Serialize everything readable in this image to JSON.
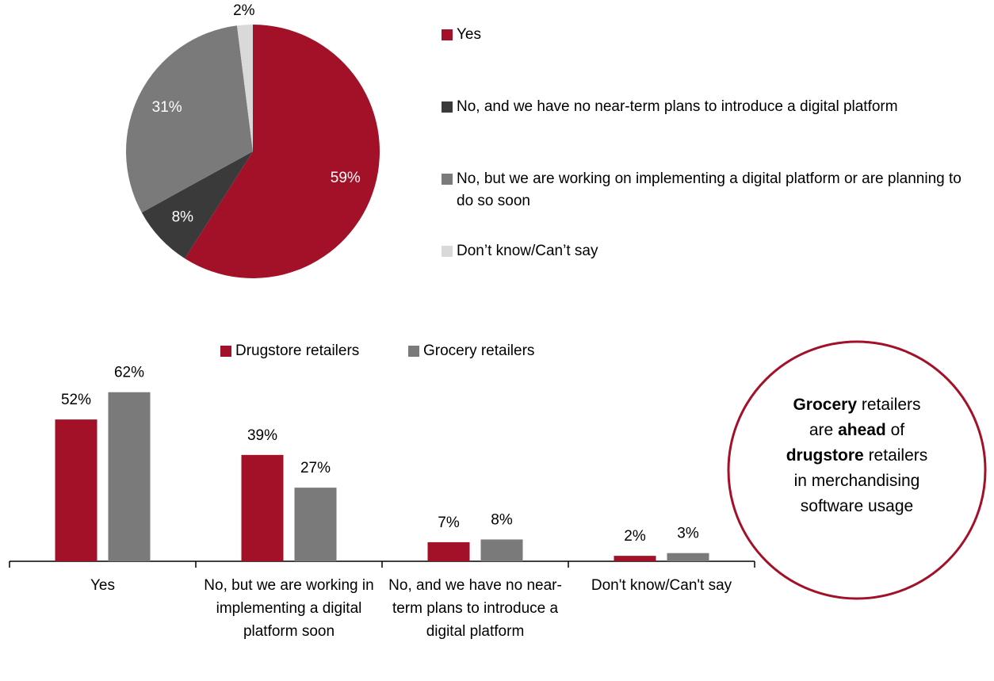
{
  "chart_data": [
    {
      "type": "pie",
      "categories": [
        "Yes",
        "No, and we have no near-term plans to introduce a digital platform",
        "No, but we are working on implementing a digital platform or are planning to do so soon",
        "Don’t know/Can’t say"
      ],
      "values": [
        59,
        8,
        31,
        2
      ],
      "value_labels": [
        "59%",
        "8%",
        "31%",
        "2%"
      ],
      "colors": [
        "#a31129",
        "#3a3a3a",
        "#7a7a7a",
        "#d9d9d9"
      ]
    },
    {
      "type": "bar",
      "categories": [
        "Yes",
        "No, but we are working in implementing a digital platform soon",
        "No, and we have no near-term plans to introduce a digital platform",
        "Don't know/Can't say"
      ],
      "series": [
        {
          "name": "Drugstore retailers",
          "color": "#a31129",
          "values": [
            52,
            39,
            7,
            2
          ],
          "value_labels": [
            "52%",
            "39%",
            "7%",
            "2%"
          ]
        },
        {
          "name": "Grocery retailers",
          "color": "#7a7a7a",
          "values": [
            62,
            27,
            8,
            3
          ],
          "value_labels": [
            "62%",
            "27%",
            "8%",
            "3%"
          ]
        }
      ]
    }
  ],
  "callout": [
    "Grocery",
    " retailers are ",
    "ahead",
    " of ",
    "drugstore",
    " retailers in merchandising software usage"
  ]
}
